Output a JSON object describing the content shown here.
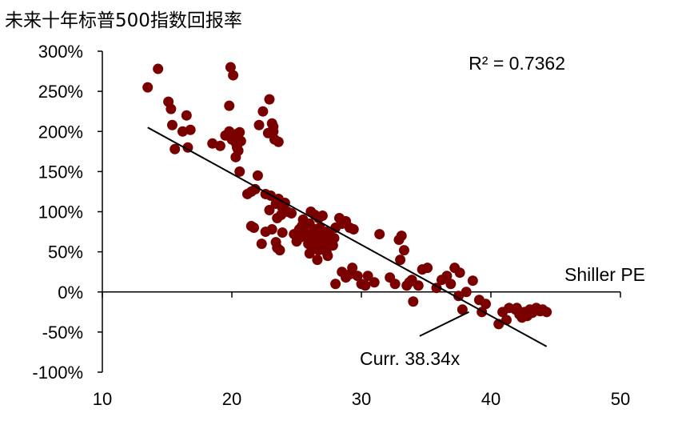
{
  "chart_data": {
    "type": "scatter",
    "title": "未来十年标普500指数回报率",
    "xlabel": "Shiller PE",
    "ylabel": "",
    "xlim": [
      10,
      50
    ],
    "ylim": [
      -100,
      300
    ],
    "x_ticks": [
      10,
      20,
      30,
      40,
      50
    ],
    "x_tick_labels": [
      "10",
      "20",
      "30",
      "40",
      "50"
    ],
    "y_ticks": [
      300,
      250,
      200,
      150,
      100,
      50,
      0,
      -50,
      -100
    ],
    "y_tick_labels": [
      "300%",
      "250%",
      "200%",
      "150%",
      "100%",
      "50%",
      "0%",
      "-50%",
      "-100%"
    ],
    "grid": false,
    "point_color": "#7a0000",
    "line_color": "#000000",
    "r_squared_label": "R² = 0.7362",
    "current_annotation": {
      "label": "Curr. 38.34x",
      "x": 38.34,
      "pointer_from": [
        34.5,
        -55
      ],
      "pointer_to": [
        38.3,
        -25
      ]
    },
    "trendline": {
      "x": [
        13.5,
        44.3
      ],
      "y": [
        205,
        -68
      ]
    },
    "points": [
      [
        13.5,
        255
      ],
      [
        14.3,
        278
      ],
      [
        15.1,
        237
      ],
      [
        15.3,
        228
      ],
      [
        15.4,
        208
      ],
      [
        15.6,
        178
      ],
      [
        16.2,
        200
      ],
      [
        16.5,
        220
      ],
      [
        16.6,
        180
      ],
      [
        16.8,
        202
      ],
      [
        18.5,
        185
      ],
      [
        19.1,
        182
      ],
      [
        19.5,
        195
      ],
      [
        19.8,
        200
      ],
      [
        19.8,
        232
      ],
      [
        20.0,
        190
      ],
      [
        20.1,
        196
      ],
      [
        20.2,
        190
      ],
      [
        20.3,
        186
      ],
      [
        20.4,
        197
      ],
      [
        20.5,
        176
      ],
      [
        20.6,
        199
      ],
      [
        20.7,
        188
      ],
      [
        19.9,
        280
      ],
      [
        20.1,
        270
      ],
      [
        20.4,
        180
      ],
      [
        20.3,
        168
      ],
      [
        20.6,
        150
      ],
      [
        22.1,
        208
      ],
      [
        22.4,
        225
      ],
      [
        22.8,
        198
      ],
      [
        22.9,
        240
      ],
      [
        23.1,
        210
      ],
      [
        23.2,
        200
      ],
      [
        23.3,
        190
      ],
      [
        23.6,
        187
      ],
      [
        23.2,
        206
      ],
      [
        21.2,
        122
      ],
      [
        21.5,
        125
      ],
      [
        21.8,
        128
      ],
      [
        22.0,
        145
      ],
      [
        21.5,
        82
      ],
      [
        21.7,
        80
      ],
      [
        22.3,
        60
      ],
      [
        22.6,
        75
      ],
      [
        22.9,
        102
      ],
      [
        23.1,
        78
      ],
      [
        23.4,
        62
      ],
      [
        23.5,
        55
      ],
      [
        23.7,
        52
      ],
      [
        23.9,
        74
      ],
      [
        23.5,
        92
      ],
      [
        23.8,
        96
      ],
      [
        22.6,
        122
      ],
      [
        23.0,
        120
      ],
      [
        23.4,
        110
      ],
      [
        23.6,
        116
      ],
      [
        23.9,
        105
      ],
      [
        24.1,
        111
      ],
      [
        24.3,
        100
      ],
      [
        24.6,
        98
      ],
      [
        24.8,
        72
      ],
      [
        25.0,
        63
      ],
      [
        25.2,
        78
      ],
      [
        25.3,
        68
      ],
      [
        25.4,
        82
      ],
      [
        25.5,
        90
      ],
      [
        25.6,
        75
      ],
      [
        25.8,
        70
      ],
      [
        25.9,
        60
      ],
      [
        26.0,
        85
      ],
      [
        26.1,
        66
      ],
      [
        26.2,
        73
      ],
      [
        26.3,
        58
      ],
      [
        26.4,
        78
      ],
      [
        26.5,
        64
      ],
      [
        26.6,
        70
      ],
      [
        26.7,
        52
      ],
      [
        26.8,
        80
      ],
      [
        26.9,
        62
      ],
      [
        27.0,
        72
      ],
      [
        27.1,
        68
      ],
      [
        27.2,
        57
      ],
      [
        27.3,
        75
      ],
      [
        27.4,
        60
      ],
      [
        27.5,
        66
      ],
      [
        27.6,
        70
      ],
      [
        27.7,
        63
      ],
      [
        27.8,
        58
      ],
      [
        27.9,
        67
      ],
      [
        26.1,
        100
      ],
      [
        26.4,
        96
      ],
      [
        26.7,
        92
      ],
      [
        27.0,
        95
      ],
      [
        26.6,
        40
      ],
      [
        27.3,
        50
      ],
      [
        26.0,
        48
      ],
      [
        27.4,
        45
      ],
      [
        28.0,
        80
      ],
      [
        28.3,
        92
      ],
      [
        28.5,
        85
      ],
      [
        28.8,
        88
      ],
      [
        29.1,
        80
      ],
      [
        29.4,
        78
      ],
      [
        28.0,
        10
      ],
      [
        28.5,
        25
      ],
      [
        28.8,
        18
      ],
      [
        29.1,
        22
      ],
      [
        29.3,
        30
      ],
      [
        29.7,
        20
      ],
      [
        30.0,
        10
      ],
      [
        30.3,
        8
      ],
      [
        30.5,
        20
      ],
      [
        31.0,
        12
      ],
      [
        31.4,
        72
      ],
      [
        32.2,
        18
      ],
      [
        32.6,
        10
      ],
      [
        32.9,
        65
      ],
      [
        33.1,
        70
      ],
      [
        33.0,
        40
      ],
      [
        33.3,
        52
      ],
      [
        33.5,
        8
      ],
      [
        33.7,
        12
      ],
      [
        34.0,
        -12
      ],
      [
        33.9,
        15
      ],
      [
        34.4,
        8
      ],
      [
        34.7,
        28
      ],
      [
        35.1,
        30
      ],
      [
        35.8,
        5
      ],
      [
        36.2,
        15
      ],
      [
        36.6,
        20
      ],
      [
        36.9,
        10
      ],
      [
        37.2,
        30
      ],
      [
        37.5,
        -5
      ],
      [
        37.6,
        24
      ],
      [
        37.8,
        -22
      ],
      [
        38.1,
        0
      ],
      [
        38.6,
        14
      ],
      [
        39.1,
        -10
      ],
      [
        39.3,
        -25
      ],
      [
        39.6,
        -15
      ],
      [
        40.6,
        -40
      ],
      [
        40.9,
        -25
      ],
      [
        41.2,
        -35
      ],
      [
        41.4,
        -20
      ],
      [
        41.9,
        -22
      ],
      [
        42.0,
        -20
      ],
      [
        42.2,
        -28
      ],
      [
        42.4,
        -32
      ],
      [
        42.6,
        -25
      ],
      [
        42.8,
        -30
      ],
      [
        43.0,
        -22
      ],
      [
        43.2,
        -26
      ],
      [
        43.5,
        -20
      ],
      [
        43.8,
        -24
      ],
      [
        44.0,
        -22
      ],
      [
        44.3,
        -25
      ]
    ]
  }
}
